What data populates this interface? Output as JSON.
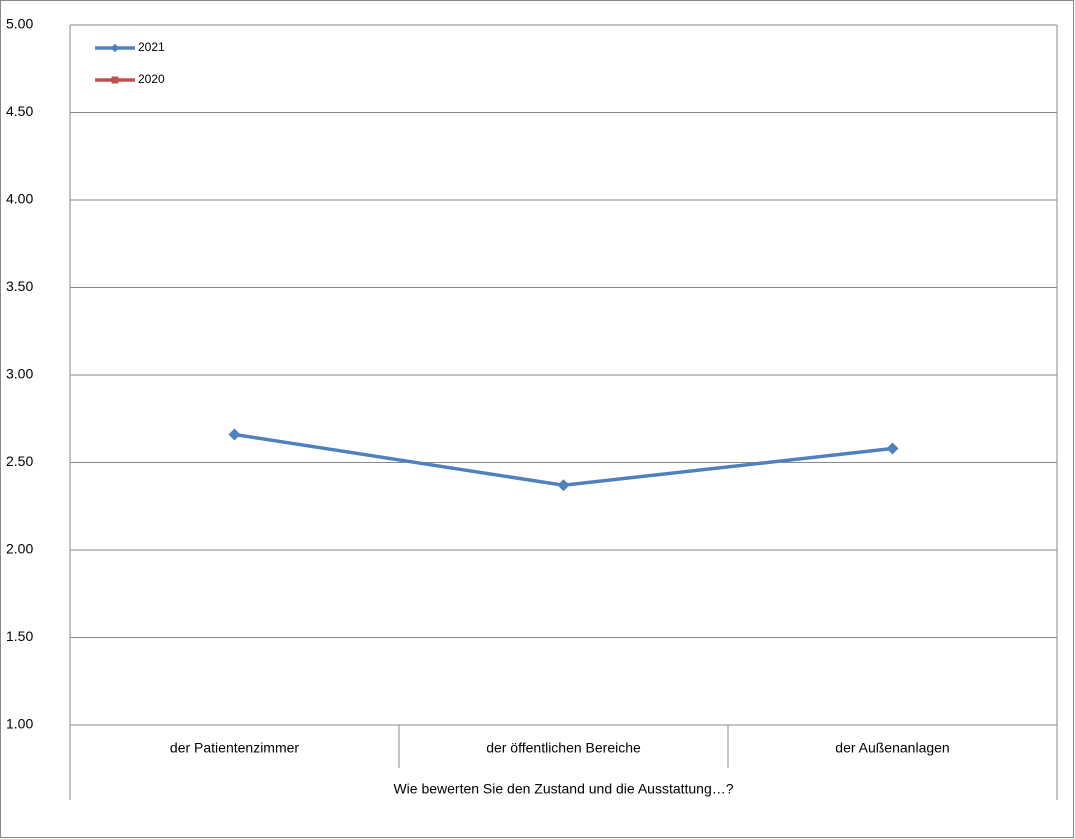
{
  "chart_data": {
    "type": "line",
    "xlabel": "Wie bewerten Sie den Zustand und die Ausstattung…?",
    "categories": [
      "der Patientenzimmer",
      "der öffentlichen Bereiche",
      "der Außenanlagen"
    ],
    "series": [
      {
        "name": "2021",
        "color": "#4f81bd",
        "marker": "diamond",
        "values": [
          2.66,
          2.37,
          2.58
        ]
      },
      {
        "name": "2020",
        "color": "#c0504d",
        "marker": "square",
        "values": [
          null,
          null,
          null
        ]
      }
    ],
    "ylim": [
      1,
      5
    ],
    "yticks": [
      {
        "value": 1,
        "label": "1.00"
      },
      {
        "value": 1.5,
        "label": "1.50"
      },
      {
        "value": 2,
        "label": "2.00"
      },
      {
        "value": 2.5,
        "label": "2.50"
      },
      {
        "value": 3,
        "label": "3.00"
      },
      {
        "value": 3.5,
        "label": "3.50"
      },
      {
        "value": 4,
        "label": "4.00"
      },
      {
        "value": 4.5,
        "label": "4.50"
      },
      {
        "value": 5,
        "label": "5.00"
      }
    ],
    "grid": true,
    "legend": "top-left"
  }
}
